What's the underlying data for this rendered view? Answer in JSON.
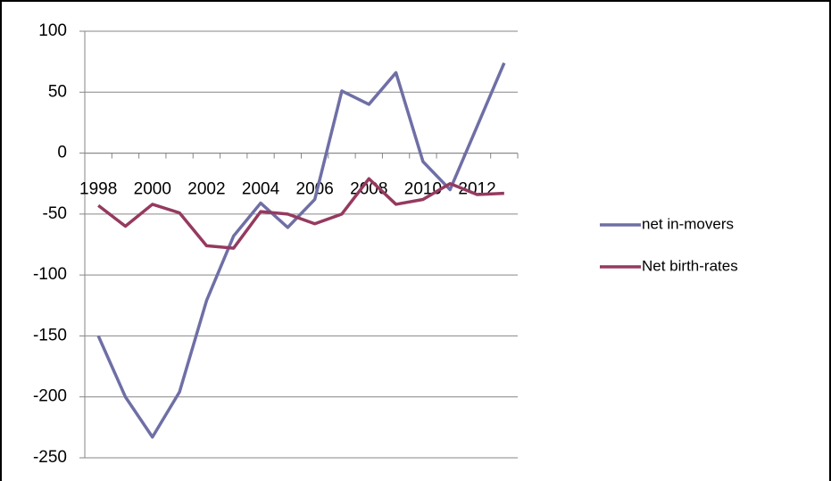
{
  "chart_data": {
    "type": "line",
    "categories": [
      "1998",
      null,
      "2000",
      null,
      "2002",
      null,
      "2004",
      null,
      "2006",
      null,
      "2008",
      null,
      "2010",
      null,
      "2012",
      null
    ],
    "series": [
      {
        "name": "net in-movers",
        "color": "#6f6fa6",
        "values": [
          -150,
          -200,
          -233,
          -196,
          -121,
          -68,
          -41,
          -61,
          -38,
          51,
          40,
          66,
          -7,
          -30,
          22,
          74
        ]
      },
      {
        "name": "Net birth-rates",
        "color": "#953a5f",
        "values": [
          -43,
          -60,
          -42,
          -49,
          -76,
          -78,
          -48,
          -50,
          -58,
          -50,
          -21,
          -42,
          -38,
          -25,
          -34,
          -33
        ]
      }
    ],
    "ylim": [
      -250,
      100
    ],
    "yticks": [
      -250,
      -200,
      -150,
      -100,
      -50,
      0,
      50,
      100
    ],
    "grid": true,
    "legend": "right",
    "negative_tick_color": "#ff0000"
  }
}
